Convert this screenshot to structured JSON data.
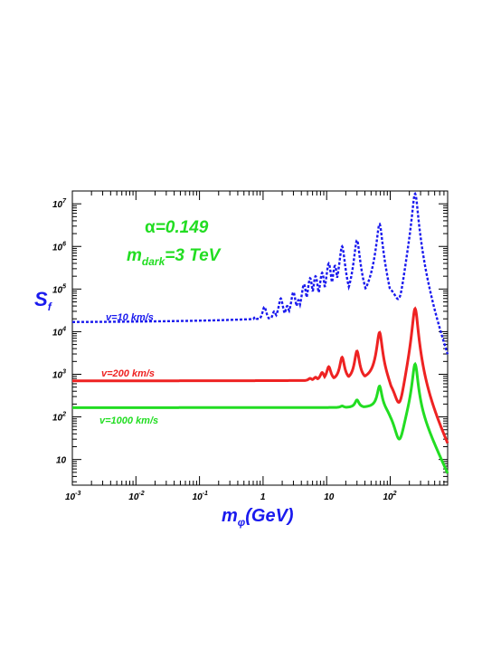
{
  "chart_data": {
    "type": "line",
    "xscale": "log",
    "yscale": "log",
    "xlim": [
      0.001,
      800
    ],
    "ylim": [
      2.5,
      20000000
    ],
    "xlabel": {
      "main": "m",
      "sub": "φ",
      "tail": "(GeV)"
    },
    "ylabel": {
      "main": "S",
      "sub": "f"
    },
    "x_ticks": [
      {
        "v": 0.001,
        "base": "10",
        "exp": "-3"
      },
      {
        "v": 0.01,
        "base": "10",
        "exp": "-2"
      },
      {
        "v": 0.1,
        "base": "10",
        "exp": "-1"
      },
      {
        "v": 1,
        "base": "1",
        "exp": ""
      },
      {
        "v": 10,
        "base": "10",
        "exp": ""
      },
      {
        "v": 100,
        "base": "10",
        "exp": "2"
      }
    ],
    "y_ticks": [
      {
        "v": 10,
        "base": "10",
        "exp": ""
      },
      {
        "v": 100,
        "base": "10",
        "exp": "2"
      },
      {
        "v": 1000,
        "base": "10",
        "exp": "3"
      },
      {
        "v": 10000,
        "base": "10",
        "exp": "4"
      },
      {
        "v": 100000,
        "base": "10",
        "exp": "5"
      },
      {
        "v": 1000000,
        "base": "10",
        "exp": "6"
      },
      {
        "v": 10000000,
        "base": "10",
        "exp": "7"
      }
    ],
    "annotations": {
      "alpha_symbol": "α",
      "alpha_value": "=0.149",
      "mdark_main": "m",
      "mdark_sub": "dark",
      "mdark_value": "=3 TeV"
    },
    "series": [
      {
        "name": "v=10 km/s",
        "color": "#1a1aee",
        "dash": true,
        "baseline": 16000,
        "resonances": [
          [
            0.35,
            13000
          ],
          [
            0.5,
            18000
          ],
          [
            0.75,
            22000
          ],
          [
            1.05,
            38000
          ],
          [
            1.5,
            30000
          ],
          [
            1.9,
            60000
          ],
          [
            2.4,
            40000
          ],
          [
            3.0,
            85000
          ],
          [
            3.6,
            55000
          ],
          [
            4.4,
            130000
          ],
          [
            5.5,
            180000
          ],
          [
            6.7,
            200000
          ],
          [
            8.5,
            240000
          ],
          [
            10.8,
            400000
          ],
          [
            13.5,
            350000
          ],
          [
            17.5,
            1000000
          ],
          [
            30,
            1400000
          ],
          [
            68,
            3500000
          ],
          [
            245,
            20000000
          ]
        ]
      },
      {
        "name": "v=200 km/s",
        "color": "#ee2222",
        "dash": false,
        "baseline": 700,
        "resonances": [
          [
            3.5,
            650
          ],
          [
            4.4,
            700
          ],
          [
            5.5,
            800
          ],
          [
            6.7,
            850
          ],
          [
            8.5,
            1100
          ],
          [
            10.8,
            1500
          ],
          [
            17.5,
            2500
          ],
          [
            30,
            3500
          ],
          [
            68,
            10000
          ],
          [
            245,
            40000
          ]
        ]
      },
      {
        "name": "v=1000 km/s",
        "color": "#22dd22",
        "dash": false,
        "baseline": 165,
        "resonances": [
          [
            17.5,
            180
          ],
          [
            30,
            250
          ],
          [
            68,
            550
          ],
          [
            245,
            2000
          ]
        ]
      }
    ]
  }
}
